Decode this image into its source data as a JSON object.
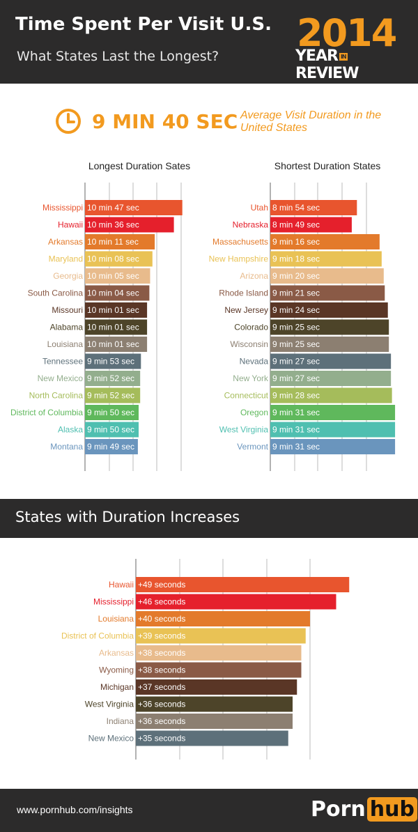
{
  "header": {
    "title": "Time Spent Per Visit U.S.",
    "subtitle": "What States Last the Longest?",
    "year": "2014",
    "year_review_left": "YEAR",
    "year_review_in": "IN",
    "year_review_right": "REVIEW"
  },
  "average": {
    "value": "9 MIN 40 SEC",
    "label": "Average Visit Duration in the United States"
  },
  "section2": {
    "title": "States with Duration Increases"
  },
  "footer": {
    "url": "www.pornhub.com/insights",
    "logo_left": "Porn",
    "logo_right": "hub"
  },
  "colors": {
    "palette": [
      "#e8552e",
      "#e5202c",
      "#e37a2b",
      "#e9c255",
      "#e8bb8c",
      "#8a5a46",
      "#5a3626",
      "#4d4429",
      "#8c7f71",
      "#5d707a",
      "#93ae8d",
      "#a5bc5b",
      "#5fb85c",
      "#4fbfb0",
      "#6a95bd"
    ],
    "inc_palette": [
      "#e8552e",
      "#e5202c",
      "#e37a2b",
      "#e9c255",
      "#e8bb8c",
      "#8a5a46",
      "#5a3626",
      "#4d4429",
      "#8c7f71",
      "#5d707a"
    ]
  },
  "chart_data": [
    {
      "type": "bar",
      "title": "Longest Duration Sates",
      "categories": [
        "Mississippi",
        "Hawaii",
        "Arkansas",
        "Maryland",
        "Georgia",
        "South Carolina",
        "Missouri",
        "Alabama",
        "Louisiana",
        "Tennessee",
        "New Mexico",
        "North Carolina",
        "District of Columbia",
        "Alaska",
        "Montana"
      ],
      "values": [
        647,
        636,
        611,
        608,
        605,
        604,
        601,
        601,
        601,
        593,
        592,
        592,
        590,
        590,
        589
      ],
      "labels": [
        "10 min 47 sec",
        "10 min 36 sec",
        "10 min 11 sec",
        "10 min 08 sec",
        "10 min 05 sec",
        "10 min 04 sec",
        "10 min 01 sec",
        "10 min 01 sec",
        "10 min 01 sec",
        "9 min 53 sec",
        "9 min 52 sec",
        "9 min 52 sec",
        "9 min 50 sec",
        "9 min 50 sec",
        "9 min 49 sec"
      ],
      "unit": "seconds"
    },
    {
      "type": "bar",
      "title": "Shortest Duration States",
      "categories": [
        "Utah",
        "Nebraska",
        "Massachusetts",
        "New Hampshire",
        "Arizona",
        "Rhode Island",
        "New Jersey",
        "Colorado",
        "Wisconsin",
        "Nevada",
        "New York",
        "Connecticut",
        "Oregon",
        "West Virginia",
        "Vermont"
      ],
      "values": [
        534,
        529,
        556,
        558,
        560,
        561,
        564,
        565,
        565,
        567,
        567,
        568,
        571,
        571,
        571
      ],
      "labels": [
        "8 min 54 sec",
        "8 min 49 sec",
        "9 min 16 sec",
        "9 min 18 sec",
        "9 min 20 sec",
        "9 min 21 sec",
        "9 min 24 sec",
        "9 min 25 sec",
        "9 min 25 sec",
        "9 min 27 sec",
        "9 min 27 sec",
        "9 min 28 sec",
        "9 min 31 sec",
        "9 min 31 sec",
        "9 min 31 sec"
      ],
      "unit": "seconds"
    },
    {
      "type": "bar",
      "title": "States with Duration Increases",
      "categories": [
        "Hawaii",
        "Mississippi",
        "Louisiana",
        "District of Columbia",
        "Arkansas",
        "Wyoming",
        "Michigan",
        "West Virginia",
        "Indiana",
        "New Mexico"
      ],
      "values": [
        49,
        46,
        40,
        39,
        38,
        38,
        37,
        36,
        36,
        35
      ],
      "labels": [
        "+49 seconds",
        "+46 seconds",
        "+40 seconds",
        "+39 seconds",
        "+38 seconds",
        "+38 seconds",
        "+37 seconds",
        "+36 seconds",
        "+36 seconds",
        "+35 seconds"
      ],
      "unit": "seconds"
    }
  ]
}
